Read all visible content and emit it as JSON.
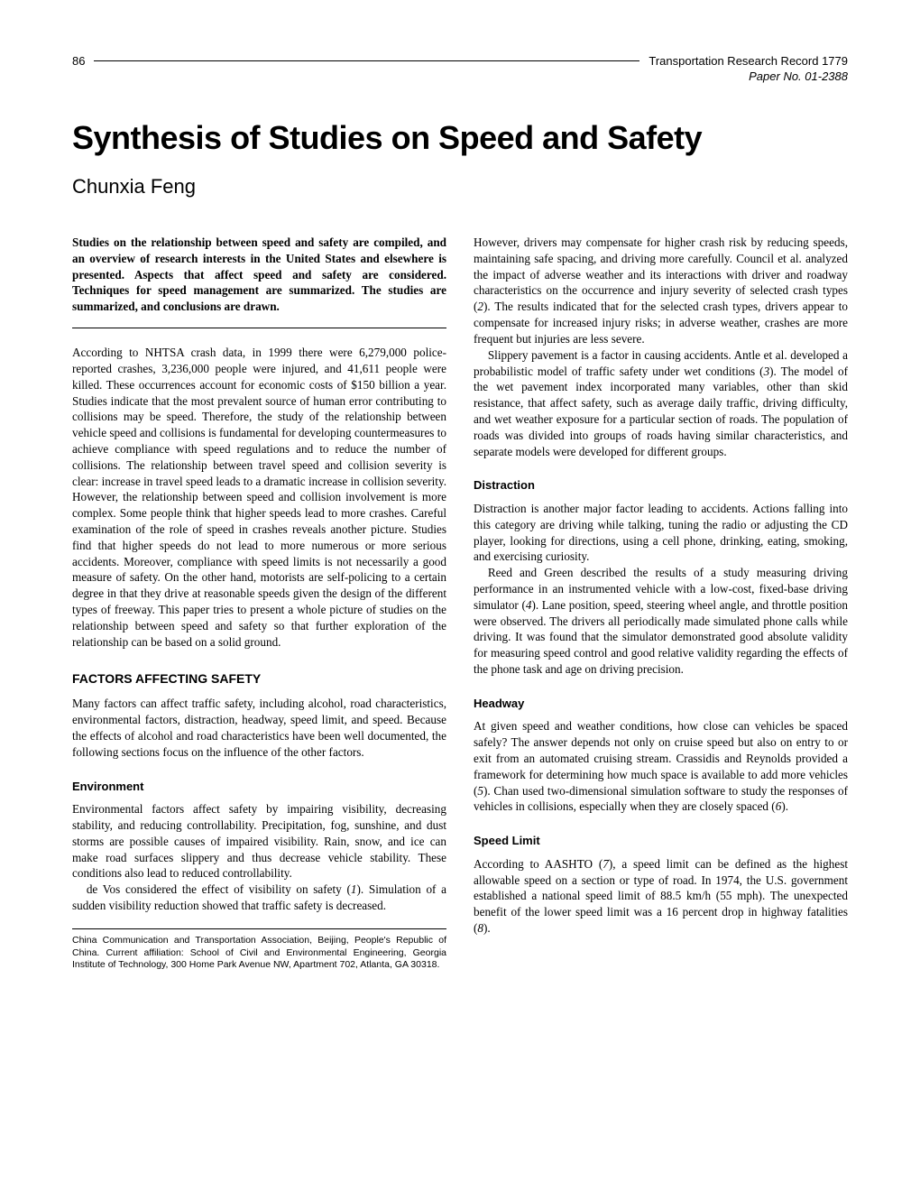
{
  "header": {
    "page_number": "86",
    "journal": "Transportation Research Record 1779",
    "paper_no": "Paper No. 01-2388"
  },
  "title": "Synthesis of Studies on Speed and Safety",
  "author": "Chunxia Feng",
  "abstract": "Studies on the relationship between speed and safety are compiled, and an overview of research interests in the United States and elsewhere is presented. Aspects that affect speed and safety are considered. Techniques for speed management are summarized. The studies are summarized, and conclusions are drawn.",
  "intro": "According to NHTSA crash data, in 1999 there were 6,279,000 police-reported crashes, 3,236,000 people were injured, and 41,611 people were killed. These occurrences account for economic costs of $150 billion a year. Studies indicate that the most prevalent source of human error contributing to collisions may be speed. Therefore, the study of the relationship between vehicle speed and collisions is fundamental for developing countermeasures to achieve compliance with speed regulations and to reduce the number of collisions. The relationship between travel speed and collision severity is clear: increase in travel speed leads to a dramatic increase in collision severity. However, the relationship between speed and collision involvement is more complex. Some people think that higher speeds lead to more crashes. Careful examination of the role of speed in crashes reveals another picture. Studies find that higher speeds do not lead to more numerous or more serious accidents. Moreover, compliance with speed limits is not necessarily a good measure of safety. On the other hand, motorists are self-policing to a certain degree in that they drive at reasonable speeds given the design of the different types of freeway. This paper tries to present a whole picture of studies on the relationship between speed and safety so that further exploration of the relationship can be based on a solid ground.",
  "s_factors": {
    "heading": "FACTORS AFFECTING SAFETY",
    "p1": "Many factors can affect traffic safety, including alcohol, road characteristics, environmental factors, distraction, headway, speed limit, and speed. Because the effects of alcohol and road characteristics have been well documented, the following sections focus on the influence of the other factors."
  },
  "s_env": {
    "heading": "Environment",
    "p1": "Environmental factors affect safety by impairing visibility, decreasing stability, and reducing controllability. Precipitation, fog, sunshine, and dust storms are possible causes of impaired visibility. Rain, snow, and ice can make road surfaces slippery and thus decrease vehicle stability. These conditions also lead to reduced controllability.",
    "p2a": "de Vos considered the effect of visibility on safety (",
    "p2b": "). Simulation of a sudden visibility reduction showed that traffic safety is decreased.",
    "r1": "1"
  },
  "col2": {
    "p1a": "However, drivers may compensate for higher crash risk by reducing speeds, maintaining safe spacing, and driving more carefully. Council et al. analyzed the impact of adverse weather and its interactions with driver and roadway characteristics on the occurrence and injury severity of selected crash types (",
    "r2": "2",
    "p1b": "). The results indicated that for the selected crash types, drivers appear to compensate for increased injury risks; in adverse weather, crashes are more frequent but injuries are less severe.",
    "p2a": "Slippery pavement is a factor in causing accidents. Antle et al. developed a probabilistic model of traffic safety under wet conditions (",
    "r3": "3",
    "p2b": "). The model of the wet pavement index incorporated many variables, other than skid resistance, that affect safety, such as average daily traffic, driving difficulty, and wet weather exposure for a particular section of roads. The population of roads was divided into groups of roads having similar characteristics, and separate models were developed for different groups."
  },
  "s_dist": {
    "heading": "Distraction",
    "p1": "Distraction is another major factor leading to accidents. Actions falling into this category are driving while talking, tuning the radio or adjusting the CD player, looking for directions, using a cell phone, drinking, eating, smoking, and exercising curiosity.",
    "p2a": "Reed and Green described the results of a study measuring driving performance in an instrumented vehicle with a low-cost, fixed-base driving simulator (",
    "r4": "4",
    "p2b": "). Lane position, speed, steering wheel angle, and throttle position were observed. The drivers all periodically made simulated phone calls while driving. It was found that the simulator demonstrated good absolute validity for measuring speed control and good relative validity regarding the effects of the phone task and age on driving precision."
  },
  "s_head": {
    "heading": "Headway",
    "p1a": "At given speed and weather conditions, how close can vehicles be spaced safely? The answer depends not only on cruise speed but also on entry to or exit from an automated cruising stream. Crassidis and Reynolds provided a framework for determining how much space is available to add more vehicles (",
    "r5": "5",
    "p1b": "). Chan used two-dimensional simulation software to study the responses of vehicles in collisions, especially when they are closely spaced (",
    "r6": "6",
    "p1c": ")."
  },
  "s_limit": {
    "heading": "Speed Limit",
    "p1a": "According to AASHTO (",
    "r7": "7",
    "p1b": "), a speed limit can be defined as the highest allowable speed on a section or type of road. In 1974, the U.S. government established a national speed limit of 88.5 km/h (55 mph). The unexpected benefit of the lower speed limit was a 16 percent drop in highway fatalities (",
    "r8": "8",
    "p1c": ")."
  },
  "footnote": "China Communication and Transportation Association, Beijing, People's Republic of China. Current affiliation: School of Civil and Environmental Engineering, Georgia Institute of Technology, 300 Home Park Avenue NW, Apartment 702, Atlanta, GA 30318."
}
